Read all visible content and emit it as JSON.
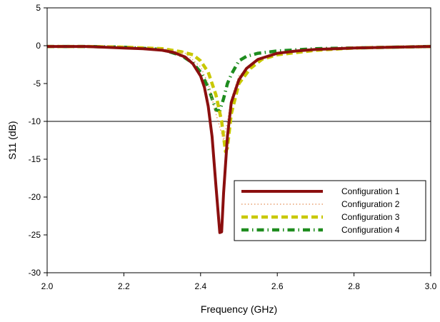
{
  "chart_data": {
    "type": "line",
    "xlabel": "Frequency (GHz)",
    "ylabel": "S11 (dB)",
    "xlim": [
      2.0,
      3.0
    ],
    "ylim": [
      -30,
      5
    ],
    "xticks": [
      "2.0",
      "2.2",
      "2.4",
      "2.6",
      "2.8",
      "3.0"
    ],
    "yticks": [
      "5",
      "0",
      "-5",
      "-10",
      "-15",
      "-20",
      "-25",
      "-30"
    ],
    "reference_line_y": -10,
    "grid": false,
    "legend_position": "bottom-right",
    "series": [
      {
        "name": "Configuration 1",
        "color": "#8b0f0f",
        "style": "solid",
        "x": [
          2.0,
          2.05,
          2.1,
          2.15,
          2.2,
          2.25,
          2.3,
          2.33,
          2.36,
          2.38,
          2.4,
          2.41,
          2.42,
          2.43,
          2.44,
          2.45,
          2.455,
          2.46,
          2.47,
          2.48,
          2.5,
          2.52,
          2.55,
          2.6,
          2.65,
          2.7,
          2.8,
          2.9,
          3.0
        ],
        "y": [
          -0.1,
          -0.1,
          -0.1,
          -0.2,
          -0.3,
          -0.4,
          -0.6,
          -0.9,
          -1.5,
          -2.4,
          -4.0,
          -5.5,
          -8.0,
          -12.0,
          -18.5,
          -24.7,
          -24.6,
          -19.5,
          -12.0,
          -7.5,
          -4.5,
          -3.0,
          -1.8,
          -1.0,
          -0.7,
          -0.5,
          -0.3,
          -0.2,
          -0.1
        ]
      },
      {
        "name": "Configuration 2",
        "color": "#e8a070",
        "style": "dotted",
        "x": [
          2.0,
          2.1,
          2.2,
          2.3,
          2.36,
          2.4,
          2.42,
          2.44,
          2.46,
          2.47,
          2.48,
          2.5,
          2.55,
          2.6,
          2.7,
          2.8,
          2.9,
          3.0
        ],
        "y": [
          -0.1,
          -0.1,
          -0.2,
          -0.4,
          -1.0,
          -2.8,
          -5.0,
          -9.0,
          -12.5,
          -10.0,
          -7.0,
          -4.0,
          -1.8,
          -1.0,
          -0.5,
          -0.3,
          -0.2,
          -0.1
        ]
      },
      {
        "name": "Configuration 3",
        "color": "#c8c800",
        "style": "dashed",
        "x": [
          2.0,
          2.1,
          2.2,
          2.3,
          2.35,
          2.38,
          2.4,
          2.42,
          2.44,
          2.455,
          2.465,
          2.47,
          2.48,
          2.5,
          2.53,
          2.56,
          2.6,
          2.7,
          2.8,
          2.9,
          3.0
        ],
        "y": [
          -0.1,
          -0.1,
          -0.2,
          -0.4,
          -0.8,
          -1.2,
          -2.0,
          -3.5,
          -6.5,
          -10.0,
          -14.0,
          -13.5,
          -9.0,
          -5.0,
          -3.0,
          -1.8,
          -1.2,
          -0.6,
          -0.3,
          -0.2,
          -0.1
        ]
      },
      {
        "name": "Configuration 4",
        "color": "#1e8c1e",
        "style": "dashdot",
        "x": [
          2.0,
          2.1,
          2.2,
          2.3,
          2.35,
          2.38,
          2.4,
          2.42,
          2.43,
          2.44,
          2.45,
          2.46,
          2.47,
          2.48,
          2.5,
          2.52,
          2.55,
          2.6,
          2.7,
          2.8,
          2.9,
          3.0
        ],
        "y": [
          -0.1,
          -0.1,
          -0.2,
          -0.5,
          -1.3,
          -2.3,
          -3.5,
          -5.5,
          -7.0,
          -8.5,
          -8.6,
          -7.0,
          -5.0,
          -3.8,
          -2.0,
          -1.4,
          -1.0,
          -0.7,
          -0.4,
          -0.3,
          -0.2,
          -0.1
        ]
      }
    ]
  }
}
